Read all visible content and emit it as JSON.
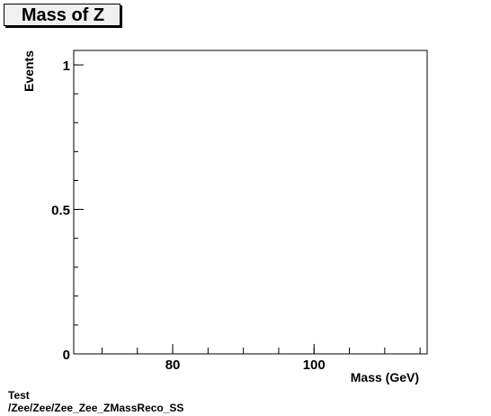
{
  "chart_data": {
    "type": "line",
    "title": "Mass of Z",
    "xlabel": "Mass (GeV)",
    "ylabel": "Events",
    "xlim": [
      66,
      116
    ],
    "ylim": [
      0,
      1.05
    ],
    "x_ticks": [
      80,
      100
    ],
    "x_tick_labels": [
      "80",
      "100"
    ],
    "y_ticks": [
      0,
      0.5,
      1
    ],
    "y_tick_labels": [
      "0",
      "0.5",
      "1"
    ],
    "series": [],
    "grid": false
  },
  "footer": {
    "line1": "Test",
    "line2": "/Zee/Zee/Zee_Zee_ZMassReco_SS"
  },
  "colors": {
    "axis": "#000000",
    "title_box_fill": "#f0f0f0"
  }
}
